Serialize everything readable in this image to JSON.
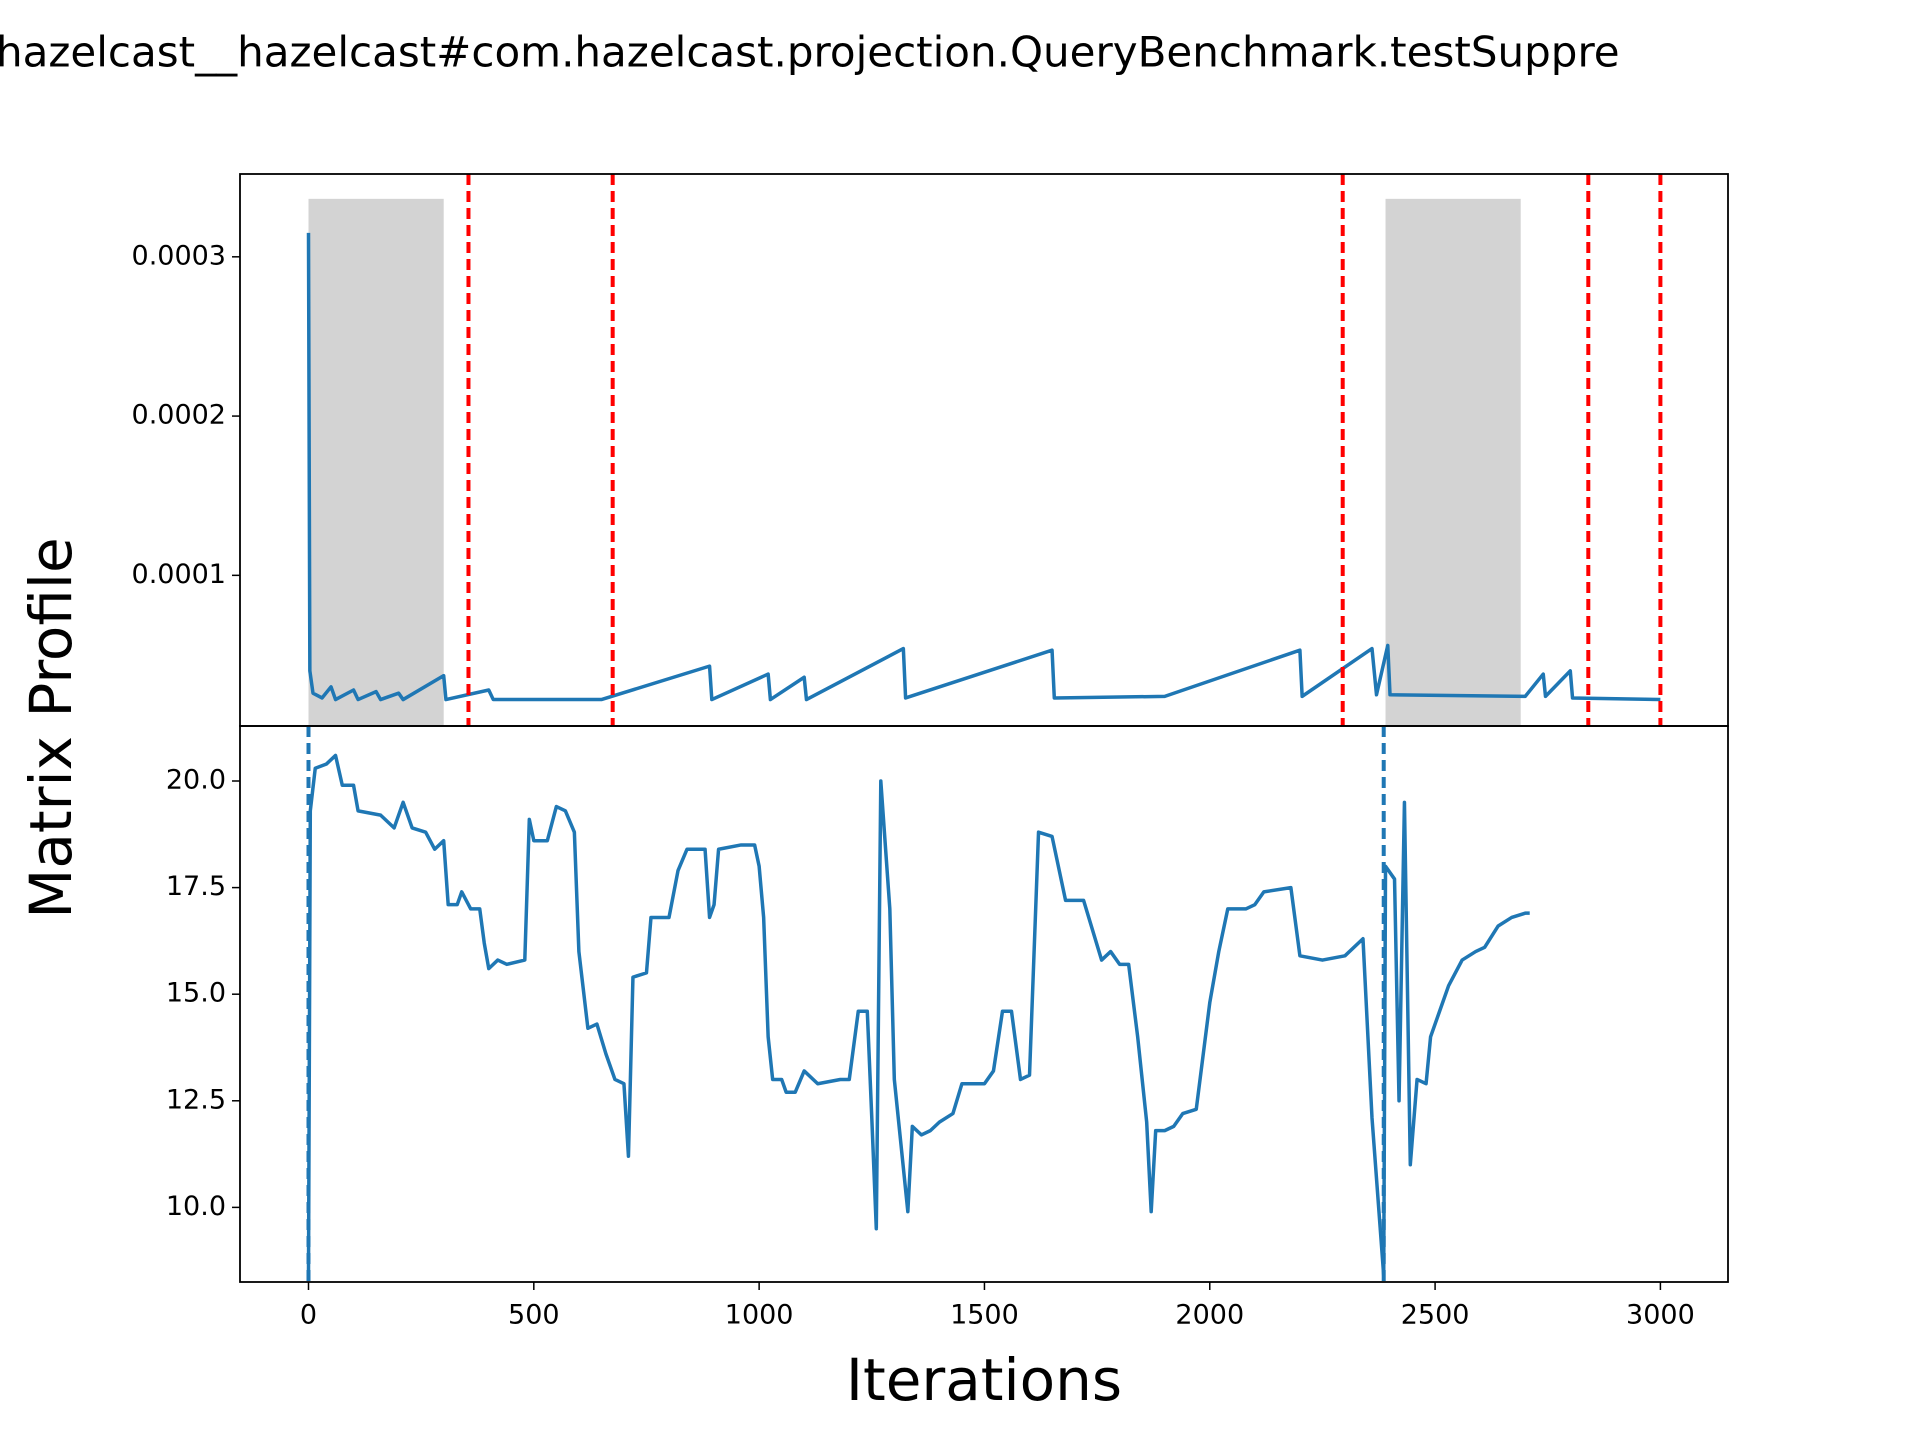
{
  "chart_data": [
    {
      "type": "line",
      "title": "hazelcast__hazelcast#com.hazelcast.projection.QueryBenchmark.testSuppre",
      "x": [
        0,
        3,
        10,
        30,
        50,
        60,
        100,
        110,
        150,
        160,
        200,
        210,
        300,
        305,
        400,
        410,
        650,
        890,
        895,
        1020,
        1025,
        1100,
        1105,
        1320,
        1325,
        1650,
        1655,
        1900,
        2200,
        2205,
        2360,
        2370,
        2395,
        2400,
        2700,
        2740,
        2745,
        2800,
        2805,
        3000
      ],
      "values": [
        0.000315,
        4e-05,
        2.6e-05,
        2.3e-05,
        3e-05,
        2.2e-05,
        2.8e-05,
        2.2e-05,
        2.7e-05,
        2.2e-05,
        2.6e-05,
        2.2e-05,
        3.7e-05,
        2.2e-05,
        2.8e-05,
        2.2e-05,
        2.2e-05,
        4.3e-05,
        2.2e-05,
        3.8e-05,
        2.2e-05,
        3.6e-05,
        2.2e-05,
        5.4e-05,
        2.3e-05,
        5.3e-05,
        2.3e-05,
        2.4e-05,
        5.3e-05,
        2.4e-05,
        5.4e-05,
        2.5e-05,
        5.6e-05,
        2.5e-05,
        2.4e-05,
        3.8e-05,
        2.4e-05,
        4e-05,
        2.3e-05,
        2.2e-05
      ],
      "color": "#1f77b4",
      "xlim": [
        -152,
        3150
      ],
      "ylim": [
        5.4e-06,
        0.000352
      ],
      "yticks": [
        0.0001,
        0.0002,
        0.0003
      ],
      "shaded_regions": [
        [
          0,
          300
        ],
        [
          2390,
          2690
        ]
      ],
      "shade_color": "#d3d3d3",
      "vlines": [
        355,
        675,
        2295,
        2840,
        3000
      ],
      "vline_color": "#ff0000"
    },
    {
      "type": "line",
      "xlabel": "Iterations",
      "ylabel": "Matrix Profile",
      "x": [
        0,
        4,
        15,
        40,
        60,
        75,
        100,
        110,
        160,
        190,
        210,
        230,
        260,
        280,
        300,
        310,
        330,
        340,
        360,
        380,
        390,
        400,
        420,
        440,
        480,
        490,
        500,
        530,
        550,
        570,
        590,
        600,
        620,
        640,
        660,
        680,
        700,
        710,
        720,
        750,
        760,
        800,
        820,
        840,
        880,
        890,
        900,
        910,
        960,
        990,
        1000,
        1010,
        1020,
        1030,
        1050,
        1060,
        1080,
        1100,
        1130,
        1180,
        1200,
        1220,
        1240,
        1250,
        1260,
        1270,
        1290,
        1300,
        1330,
        1340,
        1360,
        1380,
        1400,
        1430,
        1450,
        1500,
        1520,
        1540,
        1560,
        1580,
        1600,
        1620,
        1650,
        1680,
        1720,
        1760,
        1780,
        1800,
        1820,
        1840,
        1860,
        1870,
        1880,
        1900,
        1920,
        1940,
        1970,
        2000,
        2020,
        2040,
        2080,
        2100,
        2120,
        2180,
        2200,
        2250,
        2300,
        2340,
        2360,
        2386,
        2390,
        2410,
        2420,
        2432,
        2445,
        2460,
        2480,
        2490,
        2510,
        2530,
        2560,
        2590,
        2610,
        2640,
        2670,
        2700,
        2710
      ],
      "values": [
        8.5,
        19.3,
        20.3,
        20.4,
        20.6,
        19.9,
        19.9,
        19.3,
        19.2,
        18.9,
        19.5,
        18.9,
        18.8,
        18.4,
        18.6,
        17.1,
        17.1,
        17.4,
        17.0,
        17.0,
        16.2,
        15.6,
        15.8,
        15.7,
        15.8,
        19.1,
        18.6,
        18.6,
        19.4,
        19.3,
        18.8,
        16.0,
        14.2,
        14.3,
        13.6,
        13.0,
        12.9,
        11.2,
        15.4,
        15.5,
        16.8,
        16.8,
        17.9,
        18.4,
        18.4,
        16.8,
        17.1,
        18.4,
        18.5,
        18.5,
        18.0,
        16.8,
        14.0,
        13.0,
        13.0,
        12.7,
        12.7,
        13.2,
        12.9,
        13.0,
        13.0,
        14.6,
        14.6,
        12.1,
        9.5,
        20.0,
        17.0,
        13.0,
        9.9,
        11.9,
        11.7,
        11.8,
        12.0,
        12.2,
        12.9,
        12.9,
        13.2,
        14.6,
        14.6,
        13.0,
        13.1,
        18.8,
        18.7,
        17.2,
        17.2,
        15.8,
        16.0,
        15.7,
        15.7,
        14.0,
        12.0,
        9.9,
        11.8,
        11.8,
        11.9,
        12.2,
        12.3,
        14.8,
        16.0,
        17.0,
        17.0,
        17.1,
        17.4,
        17.5,
        15.9,
        15.8,
        15.9,
        16.3,
        12.1,
        8.4,
        18.0,
        17.7,
        12.5,
        19.5,
        11.0,
        13.0,
        12.9,
        14.0,
        14.6,
        15.2,
        15.8,
        16.0,
        16.1,
        16.6,
        16.8,
        16.9,
        16.9
      ],
      "color": "#1f77b4",
      "xlim": [
        -152,
        3150
      ],
      "ylim": [
        8.25,
        21.29
      ],
      "xticks": [
        0,
        500,
        1000,
        1500,
        2000,
        2500,
        3000
      ],
      "yticks": [
        {
          "value": 10,
          "label": "10.0"
        },
        {
          "value": 12.5,
          "label": "12.5"
        },
        {
          "value": 15,
          "label": "15.0"
        },
        {
          "value": 17.5,
          "label": "17.5"
        },
        {
          "value": 20,
          "label": "20.0"
        }
      ],
      "vlines": [
        0,
        2386
      ],
      "vline_color": "#1f77b4"
    }
  ]
}
